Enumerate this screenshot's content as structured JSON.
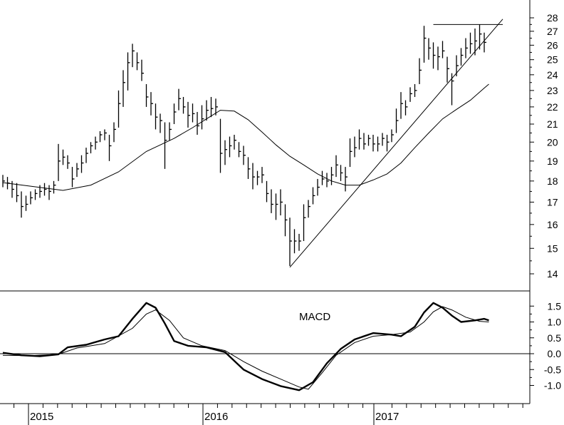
{
  "chart_data": [
    {
      "type": "ohlc",
      "title": "",
      "xlabel": "",
      "ylabel": "",
      "x_ticks": [
        "2015",
        "2016",
        "2017"
      ],
      "y_ticks": [
        "14",
        "15",
        "16",
        "17",
        "18",
        "19",
        "20",
        "21",
        "22",
        "23",
        "24",
        "25",
        "26",
        "27",
        "28"
      ],
      "ylim": [
        13.5,
        28.5
      ],
      "scale": "log",
      "grid": false,
      "weekly_bars": [
        [
          18.3,
          17.7,
          18.0
        ],
        [
          18.2,
          17.6,
          17.9
        ],
        [
          18.0,
          17.2,
          17.6
        ],
        [
          17.9,
          17.0,
          17.3
        ],
        [
          17.5,
          16.3,
          16.8
        ],
        [
          17.3,
          16.6,
          16.9
        ],
        [
          17.5,
          16.9,
          17.2
        ],
        [
          17.6,
          17.1,
          17.4
        ],
        [
          17.8,
          17.2,
          17.5
        ],
        [
          17.9,
          17.3,
          17.6
        ],
        [
          17.8,
          17.1,
          17.5
        ],
        [
          18.0,
          17.4,
          17.8
        ],
        [
          19.9,
          18.0,
          19.0
        ],
        [
          19.6,
          18.8,
          19.2
        ],
        [
          19.3,
          18.6,
          18.9
        ],
        [
          18.7,
          17.7,
          18.1
        ],
        [
          18.9,
          18.2,
          18.6
        ],
        [
          19.3,
          18.4,
          18.9
        ],
        [
          19.7,
          18.9,
          19.4
        ],
        [
          20.0,
          19.4,
          19.8
        ],
        [
          20.3,
          19.6,
          20.0
        ],
        [
          20.6,
          20.0,
          20.4
        ],
        [
          20.7,
          20.1,
          20.5
        ],
        [
          20.4,
          19.0,
          19.8
        ],
        [
          21.1,
          20.0,
          20.7
        ],
        [
          23.0,
          20.8,
          22.2
        ],
        [
          24.3,
          22.0,
          23.5
        ],
        [
          25.5,
          23.0,
          24.8
        ],
        [
          26.1,
          24.5,
          25.6
        ],
        [
          25.5,
          24.3,
          24.8
        ],
        [
          25.0,
          23.6,
          24.1
        ],
        [
          23.4,
          22.0,
          22.6
        ],
        [
          22.9,
          21.5,
          22.2
        ],
        [
          22.2,
          20.7,
          21.4
        ],
        [
          21.6,
          20.5,
          21.2
        ],
        [
          21.1,
          18.6,
          20.1
        ],
        [
          21.1,
          20.1,
          20.7
        ],
        [
          22.2,
          21.0,
          21.7
        ],
        [
          23.1,
          21.8,
          22.5
        ],
        [
          22.6,
          21.6,
          22.0
        ],
        [
          22.3,
          20.8,
          21.5
        ],
        [
          22.2,
          21.1,
          21.6
        ],
        [
          21.7,
          20.4,
          20.9
        ],
        [
          22.1,
          20.7,
          21.3
        ],
        [
          22.4,
          21.2,
          21.8
        ],
        [
          22.6,
          21.4,
          21.9
        ],
        [
          22.5,
          21.5,
          22.0
        ],
        [
          21.3,
          18.4,
          19.4
        ],
        [
          20.1,
          18.8,
          19.6
        ],
        [
          20.3,
          19.2,
          19.8
        ],
        [
          20.4,
          19.6,
          20.1
        ],
        [
          20.0,
          19.2,
          19.5
        ],
        [
          19.8,
          18.8,
          19.3
        ],
        [
          19.2,
          18.1,
          18.6
        ],
        [
          18.9,
          17.6,
          18.2
        ],
        [
          18.5,
          17.8,
          18.2
        ],
        [
          18.7,
          17.9,
          18.3
        ],
        [
          18.0,
          17.0,
          17.4
        ],
        [
          17.6,
          16.5,
          16.9
        ],
        [
          17.4,
          16.2,
          16.9
        ],
        [
          17.6,
          16.4,
          17.0
        ],
        [
          16.9,
          15.5,
          16.2
        ],
        [
          16.3,
          14.3,
          15.3
        ],
        [
          15.8,
          14.8,
          15.3
        ],
        [
          15.6,
          14.9,
          15.3
        ],
        [
          16.9,
          15.3,
          16.3
        ],
        [
          17.1,
          16.3,
          16.8
        ],
        [
          17.7,
          16.9,
          17.3
        ],
        [
          18.1,
          17.3,
          17.7
        ],
        [
          18.5,
          17.8,
          18.1
        ],
        [
          18.4,
          17.7,
          18.0
        ],
        [
          18.7,
          17.8,
          18.3
        ],
        [
          19.3,
          18.2,
          18.8
        ],
        [
          18.8,
          18.0,
          18.4
        ],
        [
          18.7,
          17.5,
          18.2
        ],
        [
          20.2,
          18.7,
          19.5
        ],
        [
          20.3,
          19.2,
          19.7
        ],
        [
          20.7,
          19.6,
          20.2
        ],
        [
          20.5,
          19.6,
          19.9
        ],
        [
          20.4,
          19.8,
          20.2
        ],
        [
          20.4,
          19.5,
          19.9
        ],
        [
          20.3,
          19.5,
          19.9
        ],
        [
          20.5,
          19.8,
          20.2
        ],
        [
          20.4,
          19.5,
          20.0
        ],
        [
          20.7,
          20.0,
          20.4
        ],
        [
          21.9,
          20.5,
          21.2
        ],
        [
          22.9,
          21.3,
          22.2
        ],
        [
          22.4,
          21.5,
          22.0
        ],
        [
          23.2,
          22.3,
          22.8
        ],
        [
          23.4,
          22.6,
          23.0
        ],
        [
          25.1,
          23.4,
          24.3
        ],
        [
          27.4,
          24.8,
          26.5
        ],
        [
          26.5,
          25.0,
          25.8
        ],
        [
          26.2,
          24.4,
          25.3
        ],
        [
          25.9,
          24.3,
          25.2
        ],
        [
          26.3,
          25.1,
          25.6
        ],
        [
          25.2,
          23.5,
          24.4
        ],
        [
          24.1,
          22.1,
          23.6
        ],
        [
          25.3,
          23.9,
          24.6
        ],
        [
          25.8,
          24.6,
          25.3
        ],
        [
          26.5,
          25.1,
          25.8
        ],
        [
          26.9,
          25.4,
          26.1
        ],
        [
          27.2,
          25.3,
          26.3
        ],
        [
          27.5,
          25.7,
          26.8
        ],
        [
          26.9,
          25.5,
          26.2
        ]
      ],
      "moving_average": [
        [
          0,
          17.92
        ],
        [
          6,
          17.75
        ],
        [
          13,
          17.55
        ],
        [
          19,
          17.8
        ],
        [
          25,
          18.45
        ],
        [
          31,
          19.5
        ],
        [
          37,
          20.2
        ],
        [
          41,
          20.8
        ],
        [
          44,
          21.3
        ],
        [
          47,
          21.8
        ],
        [
          50,
          21.75
        ],
        [
          53,
          21.25
        ],
        [
          56,
          20.55
        ],
        [
          59,
          19.85
        ],
        [
          62,
          19.25
        ],
        [
          65,
          18.8
        ],
        [
          68,
          18.35
        ],
        [
          71,
          18.0
        ],
        [
          74,
          17.8
        ],
        [
          77,
          17.8
        ],
        [
          80,
          18.05
        ],
        [
          83,
          18.35
        ],
        [
          86,
          18.9
        ],
        [
          89,
          19.7
        ],
        [
          92,
          20.5
        ],
        [
          95,
          21.3
        ],
        [
          98,
          21.85
        ],
        [
          101,
          22.4
        ],
        [
          104,
          23.15
        ],
        [
          105,
          23.4
        ]
      ],
      "resistance_line": {
        "y": 27.5,
        "from_week": 93,
        "to_week": 108
      },
      "support_line": {
        "from": [
          62,
          14.25
        ],
        "to": [
          108,
          27.9
        ]
      }
    },
    {
      "type": "line",
      "title": "MACD",
      "xlabel": "",
      "ylabel": "",
      "y_ticks": [
        "-1.0",
        "-0.5",
        "0.0",
        "0.5",
        "1.0",
        "1.5"
      ],
      "ylim": [
        -1.5,
        1.7
      ],
      "grid": false,
      "zero_line": true,
      "series": [
        {
          "style": "thick",
          "points": [
            [
              0,
              0.03
            ],
            [
              4,
              -0.05
            ],
            [
              8,
              -0.08
            ],
            [
              12,
              -0.02
            ],
            [
              14,
              0.2
            ],
            [
              18,
              0.28
            ],
            [
              22,
              0.45
            ],
            [
              25,
              0.55
            ],
            [
              28,
              1.1
            ],
            [
              31,
              1.6
            ],
            [
              33,
              1.45
            ],
            [
              35,
              0.95
            ],
            [
              37,
              0.4
            ],
            [
              40,
              0.25
            ],
            [
              44,
              0.2
            ],
            [
              48,
              0.05
            ],
            [
              52,
              -0.5
            ],
            [
              56,
              -0.8
            ],
            [
              60,
              -1.02
            ],
            [
              64,
              -1.15
            ],
            [
              67,
              -0.9
            ],
            [
              70,
              -0.3
            ],
            [
              73,
              0.15
            ],
            [
              76,
              0.45
            ],
            [
              80,
              0.65
            ],
            [
              84,
              0.6
            ],
            [
              86,
              0.55
            ],
            [
              89,
              0.85
            ],
            [
              91,
              1.3
            ],
            [
              93,
              1.6
            ],
            [
              95,
              1.45
            ],
            [
              97,
              1.2
            ],
            [
              99,
              1.0
            ],
            [
              102,
              1.05
            ],
            [
              104,
              1.1
            ],
            [
              105,
              1.05
            ]
          ]
        },
        {
          "style": "thin",
          "points": [
            [
              0,
              -0.05
            ],
            [
              6,
              -0.06
            ],
            [
              12,
              -0.02
            ],
            [
              16,
              0.18
            ],
            [
              22,
              0.32
            ],
            [
              28,
              0.8
            ],
            [
              31,
              1.25
            ],
            [
              33,
              1.38
            ],
            [
              36,
              1.05
            ],
            [
              39,
              0.5
            ],
            [
              43,
              0.25
            ],
            [
              48,
              0.1
            ],
            [
              52,
              -0.25
            ],
            [
              56,
              -0.55
            ],
            [
              60,
              -0.8
            ],
            [
              64,
              -1.05
            ],
            [
              66,
              -1.12
            ],
            [
              69,
              -0.6
            ],
            [
              72,
              -0.05
            ],
            [
              76,
              0.35
            ],
            [
              80,
              0.55
            ],
            [
              84,
              0.6
            ],
            [
              88,
              0.68
            ],
            [
              91,
              1.0
            ],
            [
              93,
              1.32
            ],
            [
              95,
              1.48
            ],
            [
              97,
              1.38
            ],
            [
              100,
              1.15
            ],
            [
              103,
              1.02
            ],
            [
              105,
              1.0
            ]
          ]
        }
      ]
    }
  ],
  "colors": {
    "background": "#ffffff",
    "ink": "#000000"
  }
}
